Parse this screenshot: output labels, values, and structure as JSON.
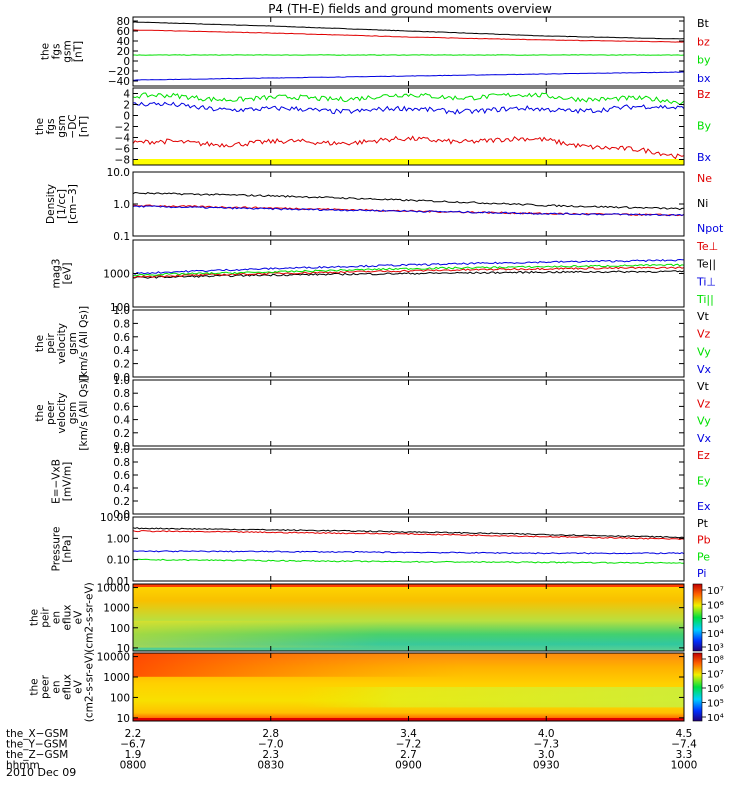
{
  "title": "P4 (TH-E) fields and ground moments overview",
  "date": "2010 Dec 09",
  "colors": {
    "black": "#000000",
    "red": "#e00000",
    "green": "#00e000",
    "blue": "#0000e0",
    "yellow": "#ffff00"
  },
  "panels": [
    {
      "id": "fgs-gsm",
      "ylabel": [
        "the",
        "fgs",
        "gsm",
        "[nT]"
      ],
      "type": "line",
      "scale": "linear",
      "yticks": [
        "80",
        "60",
        "40",
        "20",
        "0",
        "−20",
        "−40"
      ],
      "ytick_values": [
        80,
        60,
        40,
        20,
        0,
        -20,
        -40
      ],
      "ylim": [
        -50,
        88
      ],
      "legend": [
        {
          "text": "Bt",
          "color": "#000000"
        },
        {
          "text": "bz",
          "color": "#e00000"
        },
        {
          "text": "by",
          "color": "#00e000"
        },
        {
          "text": "bx",
          "color": "#0000e0"
        }
      ]
    },
    {
      "id": "fgs-gsm-dc",
      "ylabel": [
        "the",
        "fgs",
        "gsm",
        "−DC",
        "[nT]"
      ],
      "type": "line",
      "scale": "linear",
      "yticks": [
        "4",
        "2",
        "0",
        "−2",
        "−4",
        "−6",
        "−8"
      ],
      "ytick_values": [
        4,
        2,
        0,
        -2,
        -4,
        -6,
        -8
      ],
      "ylim": [
        -9,
        5
      ],
      "legend": [
        {
          "text": "Bz",
          "color": "#e00000"
        },
        {
          "text": "By",
          "color": "#00e000"
        },
        {
          "text": "Bx",
          "color": "#0000e0"
        }
      ]
    },
    {
      "id": "density",
      "ylabel": [
        "Density",
        "[1/cc]",
        "[cm−3]"
      ],
      "type": "line",
      "scale": "log",
      "yticks": [
        "10.0",
        "1.0",
        "0.1"
      ],
      "ytick_values": [
        10,
        1,
        0.1
      ],
      "ylim": [
        0.1,
        10
      ],
      "legend": [
        {
          "text": "Ne",
          "color": "#e00000"
        },
        {
          "text": "Ni",
          "color": "#000000"
        },
        {
          "text": "Npot",
          "color": "#0000e0"
        }
      ]
    },
    {
      "id": "temperature",
      "ylabel": [
        "mag3",
        "[eV]"
      ],
      "type": "line",
      "scale": "log",
      "yticks": [
        "1000",
        "100"
      ],
      "ytick_values": [
        1000,
        100
      ],
      "ylim": [
        100,
        10000
      ],
      "legend": [
        {
          "text": "Te⊥",
          "color": "#e00000"
        },
        {
          "text": "Te||",
          "color": "#000000"
        },
        {
          "text": "Ti⊥",
          "color": "#0000e0"
        },
        {
          "text": "Ti||",
          "color": "#00e000"
        }
      ]
    },
    {
      "id": "peir-velocity",
      "ylabel": [
        "the",
        "peir",
        "velocity",
        "gsm",
        "[km/s (All Qs)]"
      ],
      "type": "empty",
      "scale": "linear",
      "yticks": [
        "1.0",
        "0.8",
        "0.6",
        "0.4",
        "0.2",
        "0.0"
      ],
      "ytick_values": [
        1,
        0.8,
        0.6,
        0.4,
        0.2,
        0
      ],
      "ylim": [
        0,
        1
      ],
      "legend": [
        {
          "text": "Vt",
          "color": "#000000"
        },
        {
          "text": "Vz",
          "color": "#e00000"
        },
        {
          "text": "Vy",
          "color": "#00e000"
        },
        {
          "text": "Vx",
          "color": "#0000e0"
        }
      ]
    },
    {
      "id": "peer-velocity",
      "ylabel": [
        "the",
        "peer",
        "velocity",
        "gsm",
        "[km/s (All Qs)]"
      ],
      "type": "empty",
      "scale": "linear",
      "yticks": [
        "1.0",
        "0.8",
        "0.6",
        "0.4",
        "0.2",
        "0.0"
      ],
      "ytick_values": [
        1,
        0.8,
        0.6,
        0.4,
        0.2,
        0
      ],
      "ylim": [
        0,
        1
      ],
      "legend": [
        {
          "text": "Vt",
          "color": "#000000"
        },
        {
          "text": "Vz",
          "color": "#e00000"
        },
        {
          "text": "Vy",
          "color": "#00e000"
        },
        {
          "text": "Vx",
          "color": "#0000e0"
        }
      ]
    },
    {
      "id": "efield",
      "ylabel": [
        "E=−VxB",
        "[mV/m]"
      ],
      "type": "empty",
      "scale": "linear",
      "yticks": [
        "1.0",
        "0.8",
        "0.6",
        "0.4",
        "0.2",
        "0.0"
      ],
      "ytick_values": [
        1,
        0.8,
        0.6,
        0.4,
        0.2,
        0
      ],
      "ylim": [
        0,
        1
      ],
      "legend": [
        {
          "text": "Ez",
          "color": "#e00000"
        },
        {
          "text": "Ey",
          "color": "#00e000"
        },
        {
          "text": "Ex",
          "color": "#0000e0"
        }
      ]
    },
    {
      "id": "pressure",
      "ylabel": [
        "Pressure",
        "[nPa]"
      ],
      "type": "line",
      "scale": "log",
      "yticks": [
        "10.00",
        "1.00",
        "0.10",
        "0.01"
      ],
      "ytick_values": [
        10,
        1,
        0.1,
        0.01
      ],
      "ylim": [
        0.01,
        10
      ],
      "legend": [
        {
          "text": "Pt",
          "color": "#000000"
        },
        {
          "text": "Pb",
          "color": "#e00000"
        },
        {
          "text": "Pe",
          "color": "#00e000"
        },
        {
          "text": "Pi",
          "color": "#0000e0"
        }
      ]
    },
    {
      "id": "peir-en-eflux",
      "ylabel": [
        "the",
        "peir",
        "en",
        "eflux",
        "eV",
        "(cm2-s-sr-eV)"
      ],
      "type": "heatmap",
      "scale": "log",
      "yticks": [
        "10000",
        "1000",
        "100",
        "10"
      ],
      "ytick_values": [
        10000,
        1000,
        100,
        10
      ],
      "ylim": [
        7,
        15000
      ],
      "colorbar": [
        "10⁷",
        "10⁶",
        "10⁵",
        "10⁴",
        "10³"
      ]
    },
    {
      "id": "peer-en-eflux",
      "ylabel": [
        "the",
        "peer",
        "en",
        "eflux",
        "eV",
        "(cm2-s-sr-eV)"
      ],
      "type": "heatmap",
      "scale": "log",
      "yticks": [
        "10000",
        "1000",
        "100",
        "10"
      ],
      "ytick_values": [
        10000,
        1000,
        100,
        10
      ],
      "ylim": [
        7,
        15000
      ],
      "colorbar": [
        "10⁸",
        "10⁷",
        "10⁶",
        "10⁵",
        "10⁴"
      ]
    }
  ],
  "xaxis": {
    "rows": [
      {
        "label": "the_X−GSM",
        "values": [
          "2.2",
          "2.8",
          "3.4",
          "4.0",
          "4.5"
        ]
      },
      {
        "label": "the_Y−GSM",
        "values": [
          "−6.7",
          "−7.0",
          "−7.2",
          "−7.3",
          "−7.4"
        ]
      },
      {
        "label": "the_Z−GSM",
        "values": [
          "1.9",
          "2.3",
          "2.7",
          "3.0",
          "3.3"
        ]
      },
      {
        "label": "hhmm",
        "values": [
          "0800",
          "0830",
          "0900",
          "0930",
          "1000"
        ]
      }
    ]
  },
  "chart_data": {
    "type": "line",
    "title": "P4 (TH-E) fields and ground moments overview",
    "x": [
      "0800",
      "0830",
      "0900",
      "0930",
      "1000"
    ],
    "xlabel": "hhmm",
    "series": [
      {
        "panel": "fgs-gsm",
        "name": "Bt",
        "values": [
          78,
          70,
          60,
          50,
          44
        ]
      },
      {
        "panel": "fgs-gsm",
        "name": "bz",
        "values": [
          62,
          56,
          48,
          42,
          38
        ]
      },
      {
        "panel": "fgs-gsm",
        "name": "by",
        "values": [
          12,
          12,
          12,
          12,
          12
        ]
      },
      {
        "panel": "fgs-gsm",
        "name": "bx",
        "values": [
          -38,
          -34,
          -30,
          -26,
          -22
        ]
      },
      {
        "panel": "fgs-gsm-dc",
        "name": "Bz",
        "values": [
          -5,
          -5,
          -4.5,
          -4.5,
          -7.5
        ]
      },
      {
        "panel": "fgs-gsm-dc",
        "name": "By",
        "values": [
          3.5,
          3,
          3.5,
          3.5,
          2.5
        ]
      },
      {
        "panel": "fgs-gsm-dc",
        "name": "Bx",
        "values": [
          2,
          1,
          1,
          1,
          1.5
        ]
      },
      {
        "panel": "density",
        "name": "Ni",
        "values": [
          2.2,
          1.8,
          1.3,
          0.9,
          0.7
        ]
      },
      {
        "panel": "density",
        "name": "Ne",
        "values": [
          0.9,
          0.75,
          0.6,
          0.5,
          0.45
        ]
      },
      {
        "panel": "density",
        "name": "Npot",
        "values": [
          0.85,
          0.7,
          0.6,
          0.5,
          0.45
        ]
      },
      {
        "panel": "temperature",
        "name": "Te||",
        "values": [
          750,
          900,
          1000,
          1100,
          1150
        ]
      },
      {
        "panel": "temperature",
        "name": "Te⊥",
        "values": [
          800,
          1000,
          1200,
          1400,
          1500
        ]
      },
      {
        "panel": "temperature",
        "name": "Ti⊥",
        "values": [
          1000,
          1400,
          1800,
          2200,
          2500
        ]
      },
      {
        "panel": "temperature",
        "name": "Ti||",
        "values": [
          900,
          1100,
          1400,
          1600,
          1800
        ]
      },
      {
        "panel": "pressure",
        "name": "Pt",
        "values": [
          3,
          2.5,
          2,
          1.5,
          1.1
        ]
      },
      {
        "panel": "pressure",
        "name": "Pb",
        "values": [
          2.2,
          1.9,
          1.6,
          1.2,
          0.9
        ]
      },
      {
        "panel": "pressure",
        "name": "Pi",
        "values": [
          0.25,
          0.24,
          0.22,
          0.2,
          0.2
        ]
      },
      {
        "panel": "pressure",
        "name": "Pe",
        "values": [
          0.1,
          0.09,
          0.08,
          0.075,
          0.07
        ]
      }
    ]
  }
}
